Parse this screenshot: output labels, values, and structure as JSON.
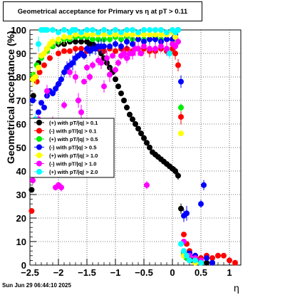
{
  "title": "Geometrical acceptance for Primary vs    η  at pT > 0.11",
  "footer": "Sun Jun 29 06:44:10 2025",
  "chart_data": {
    "type": "scatter",
    "xlabel": "η",
    "ylabel": "Geometrical acceptance (%)",
    "xlim": [
      -2.5,
      1.2
    ],
    "ylim": [
      0,
      100
    ],
    "x_ticks": [
      "−2.5",
      "−2",
      "−1.5",
      "−1",
      "−0.5",
      "0",
      "0.5",
      "1"
    ],
    "y_ticks": [
      "0",
      "10",
      "20",
      "30",
      "40",
      "50",
      "60",
      "70",
      "80",
      "90",
      "100"
    ],
    "grid": true,
    "legend_position": "left-middle",
    "series": [
      {
        "name": "(+) with pT/|q| > 0.1",
        "color": "#000000",
        "points": [
          [
            -2.47,
            32
          ],
          [
            -2.44,
            72
          ],
          [
            -2.4,
            80
          ],
          [
            -2.35,
            86
          ],
          [
            -2.3,
            89
          ],
          [
            -2.2,
            92
          ],
          [
            -2.1,
            93
          ],
          [
            -2.0,
            94
          ],
          [
            -1.9,
            94
          ],
          [
            -1.8,
            95
          ],
          [
            -1.7,
            95
          ],
          [
            -1.6,
            95
          ],
          [
            -1.5,
            95
          ],
          [
            -1.45,
            94
          ],
          [
            -1.4,
            94
          ],
          [
            -1.35,
            93
          ],
          [
            -1.3,
            92
          ],
          [
            -1.25,
            90
          ],
          [
            -1.2,
            88
          ],
          [
            -1.15,
            86
          ],
          [
            -1.1,
            84
          ],
          [
            -1.05,
            82
          ],
          [
            -1.0,
            79
          ],
          [
            -0.95,
            76
          ],
          [
            -0.9,
            73
          ],
          [
            -0.85,
            70
          ],
          [
            -0.8,
            67
          ],
          [
            -0.75,
            64
          ],
          [
            -0.7,
            62
          ],
          [
            -0.65,
            60
          ],
          [
            -0.6,
            58
          ],
          [
            -0.55,
            56
          ],
          [
            -0.5,
            54
          ],
          [
            -0.45,
            52
          ],
          [
            -0.4,
            50
          ],
          [
            -0.35,
            48
          ],
          [
            -0.3,
            47
          ],
          [
            -0.25,
            46
          ],
          [
            -0.2,
            45
          ],
          [
            -0.15,
            44
          ],
          [
            -0.1,
            43
          ],
          [
            -0.05,
            42
          ],
          [
            0.0,
            41
          ],
          [
            0.05,
            40
          ],
          [
            0.1,
            38
          ],
          [
            0.15,
            24
          ],
          [
            0.2,
            5
          ],
          [
            0.25,
            3
          ],
          [
            0.3,
            2
          ],
          [
            0.35,
            2
          ],
          [
            0.4,
            2
          ],
          [
            0.45,
            2
          ],
          [
            0.5,
            1
          ],
          [
            0.6,
            1
          ],
          [
            0.7,
            1
          ]
        ]
      },
      {
        "name": "(-) with pT/|q| > 0.1",
        "color": "#ff0000",
        "points": [
          [
            -2.47,
            23
          ],
          [
            -2.42,
            80
          ],
          [
            -2.38,
            78
          ],
          [
            -2.33,
            82
          ],
          [
            -2.25,
            85
          ],
          [
            -2.15,
            88
          ],
          [
            -2.0,
            90
          ],
          [
            -1.9,
            91
          ],
          [
            -1.8,
            91
          ],
          [
            -1.7,
            92
          ],
          [
            -1.6,
            92
          ],
          [
            -1.5,
            91
          ],
          [
            -1.4,
            92
          ],
          [
            -1.3,
            92
          ],
          [
            -1.2,
            91
          ],
          [
            -1.1,
            92
          ],
          [
            -1.0,
            91
          ],
          [
            -0.9,
            92
          ],
          [
            -0.8,
            92
          ],
          [
            -0.7,
            91
          ],
          [
            -0.6,
            92
          ],
          [
            -0.5,
            92
          ],
          [
            -0.4,
            91
          ],
          [
            -0.3,
            91
          ],
          [
            -0.2,
            92
          ],
          [
            -0.1,
            91
          ],
          [
            0.0,
            92
          ],
          [
            0.05,
            90
          ],
          [
            0.1,
            85
          ],
          [
            0.15,
            63
          ],
          [
            0.2,
            13
          ],
          [
            0.25,
            9
          ],
          [
            0.3,
            6
          ],
          [
            0.4,
            4
          ],
          [
            0.5,
            3
          ],
          [
            0.6,
            4
          ],
          [
            0.7,
            3
          ],
          [
            0.8,
            4
          ],
          [
            0.9,
            4
          ],
          [
            1.0,
            2
          ],
          [
            1.1,
            1
          ]
        ]
      },
      {
        "name": "(+) with pT/|q| > 0.5",
        "color": "#00ee00",
        "points": [
          [
            -2.44,
            81
          ],
          [
            -2.38,
            85
          ],
          [
            -2.3,
            88
          ],
          [
            -2.2,
            91
          ],
          [
            -2.1,
            93
          ],
          [
            -2.0,
            95
          ],
          [
            -1.9,
            96
          ],
          [
            -1.8,
            96
          ],
          [
            -1.7,
            97
          ],
          [
            -1.6,
            97
          ],
          [
            -1.5,
            97
          ],
          [
            -1.4,
            96
          ],
          [
            -1.3,
            96
          ],
          [
            -1.2,
            96
          ],
          [
            -1.1,
            96
          ],
          [
            -1.0,
            97
          ],
          [
            -0.9,
            96
          ],
          [
            -0.8,
            97
          ],
          [
            -0.7,
            96
          ],
          [
            -0.6,
            96
          ],
          [
            -0.5,
            96
          ],
          [
            -0.4,
            96
          ],
          [
            -0.3,
            97
          ],
          [
            -0.2,
            96
          ],
          [
            -0.1,
            96
          ],
          [
            0.0,
            96
          ],
          [
            0.05,
            95
          ],
          [
            0.15,
            67
          ],
          [
            0.2,
            5
          ],
          [
            0.25,
            3
          ],
          [
            0.3,
            2
          ],
          [
            0.4,
            2
          ],
          [
            0.5,
            1
          ]
        ]
      },
      {
        "name": "(-) with pT/|q| > 0.5",
        "color": "#0000ff",
        "points": [
          [
            -2.45,
            70
          ],
          [
            -2.4,
            62
          ],
          [
            -2.35,
            65
          ],
          [
            -2.3,
            69
          ],
          [
            -2.25,
            67
          ],
          [
            -2.2,
            72
          ],
          [
            -2.15,
            74
          ],
          [
            -2.1,
            73
          ],
          [
            -2.05,
            75
          ],
          [
            -2.0,
            77
          ],
          [
            -1.95,
            79
          ],
          [
            -1.9,
            82
          ],
          [
            -1.85,
            84
          ],
          [
            -1.8,
            85
          ],
          [
            -1.75,
            86
          ],
          [
            -1.7,
            88
          ],
          [
            -1.65,
            89
          ],
          [
            -1.6,
            90
          ],
          [
            -1.55,
            89
          ],
          [
            -1.5,
            92
          ],
          [
            -1.45,
            91
          ],
          [
            -1.4,
            92
          ],
          [
            -1.35,
            92
          ],
          [
            -1.3,
            93
          ],
          [
            -1.25,
            93
          ],
          [
            -1.2,
            93
          ],
          [
            -1.1,
            93
          ],
          [
            -1.0,
            94
          ],
          [
            -0.9,
            93
          ],
          [
            -0.8,
            95
          ],
          [
            -0.7,
            94
          ],
          [
            -0.6,
            96
          ],
          [
            -0.5,
            95
          ],
          [
            -0.4,
            96
          ],
          [
            -0.3,
            96
          ],
          [
            -0.2,
            95
          ],
          [
            -0.1,
            96
          ],
          [
            0.0,
            96
          ],
          [
            0.05,
            98
          ],
          [
            0.1,
            100
          ],
          [
            0.15,
            78
          ],
          [
            0.2,
            21
          ],
          [
            0.25,
            22
          ],
          [
            0.3,
            5
          ],
          [
            0.4,
            4
          ],
          [
            0.5,
            26
          ],
          [
            0.55,
            34
          ],
          [
            0.6,
            3
          ],
          [
            0.7,
            1
          ]
        ]
      },
      {
        "name": "(+) with pT/|q| > 1.0",
        "color": "#ffff00",
        "points": [
          [
            -2.45,
            79
          ],
          [
            -2.4,
            80
          ],
          [
            -2.35,
            84
          ],
          [
            -2.3,
            89
          ],
          [
            -2.25,
            90
          ],
          [
            -2.2,
            92
          ],
          [
            -2.15,
            94
          ],
          [
            -2.1,
            95
          ],
          [
            -2.0,
            96
          ],
          [
            -1.9,
            97
          ],
          [
            -1.8,
            97
          ],
          [
            -1.7,
            98
          ],
          [
            -1.6,
            98
          ],
          [
            -1.5,
            98
          ],
          [
            -1.4,
            98
          ],
          [
            -1.3,
            98
          ],
          [
            -1.2,
            98
          ],
          [
            -1.1,
            98
          ],
          [
            -1.0,
            98
          ],
          [
            -0.9,
            98
          ],
          [
            -0.8,
            98
          ],
          [
            -0.7,
            98
          ],
          [
            -0.6,
            98
          ],
          [
            -0.5,
            98
          ],
          [
            -0.4,
            98
          ],
          [
            -0.3,
            98
          ],
          [
            -0.2,
            98
          ],
          [
            -0.1,
            98
          ],
          [
            0.0,
            99
          ],
          [
            0.05,
            97
          ],
          [
            0.15,
            56
          ],
          [
            0.2,
            4
          ],
          [
            0.3,
            2
          ],
          [
            0.4,
            1
          ],
          [
            0.5,
            1
          ]
        ]
      },
      {
        "name": "(-) with pT/|q| > 1.0",
        "color": "#ff00ff",
        "points": [
          [
            -2.45,
            36
          ],
          [
            -2.4,
            60
          ],
          [
            -2.35,
            62
          ],
          [
            -2.25,
            56
          ],
          [
            -2.2,
            74
          ],
          [
            -2.1,
            60
          ],
          [
            -2.05,
            33
          ],
          [
            -2.0,
            34
          ],
          [
            -1.95,
            33
          ],
          [
            -1.9,
            68
          ],
          [
            -1.85,
            60
          ],
          [
            -1.8,
            82
          ],
          [
            -1.7,
            80
          ],
          [
            -1.65,
            70
          ],
          [
            -1.6,
            65
          ],
          [
            -1.55,
            78
          ],
          [
            -1.5,
            84
          ],
          [
            -1.45,
            80
          ],
          [
            -1.4,
            85
          ],
          [
            -1.3,
            87
          ],
          [
            -1.25,
            86
          ],
          [
            -1.2,
            76
          ],
          [
            -1.15,
            88
          ],
          [
            -1.1,
            81
          ],
          [
            -1.05,
            89
          ],
          [
            -1.0,
            83
          ],
          [
            -0.95,
            86
          ],
          [
            -0.9,
            89
          ],
          [
            -0.85,
            90
          ],
          [
            -0.8,
            88
          ],
          [
            -0.75,
            90
          ],
          [
            -0.7,
            90
          ],
          [
            -0.65,
            92
          ],
          [
            -0.6,
            92
          ],
          [
            -0.55,
            90
          ],
          [
            -0.5,
            93
          ],
          [
            -0.45,
            34
          ],
          [
            -0.4,
            92
          ],
          [
            -0.3,
            92
          ],
          [
            -0.2,
            93
          ],
          [
            -0.1,
            92
          ],
          [
            0.0,
            94
          ],
          [
            0.05,
            93
          ],
          [
            0.1,
            95
          ],
          [
            0.2,
            10
          ],
          [
            0.3,
            4
          ],
          [
            0.4,
            3
          ],
          [
            0.5,
            2
          ]
        ]
      },
      {
        "name": "(+) with pT/|q| > 2.0",
        "color": "#00ffff",
        "points": [
          [
            -2.45,
            55
          ],
          [
            -2.4,
            62
          ],
          [
            -2.35,
            94
          ],
          [
            -2.3,
            100
          ],
          [
            -2.25,
            100
          ],
          [
            -2.2,
            100
          ],
          [
            -2.1,
            100
          ],
          [
            -2.0,
            99
          ],
          [
            -1.9,
            100
          ],
          [
            -1.8,
            99
          ],
          [
            -1.75,
            100
          ],
          [
            -1.7,
            100
          ],
          [
            -1.6,
            99
          ],
          [
            -1.5,
            100
          ],
          [
            -1.4,
            100
          ],
          [
            -1.3,
            99
          ],
          [
            -1.2,
            100
          ],
          [
            -1.1,
            99
          ],
          [
            -1.0,
            100
          ],
          [
            -0.9,
            99
          ],
          [
            -0.8,
            100
          ],
          [
            -0.7,
            100
          ],
          [
            -0.6,
            99
          ],
          [
            -0.5,
            100
          ],
          [
            -0.4,
            100
          ],
          [
            -0.3,
            100
          ],
          [
            -0.2,
            100
          ],
          [
            -0.1,
            99
          ],
          [
            -0.05,
            90
          ],
          [
            0.0,
            100
          ],
          [
            0.05,
            99
          ],
          [
            0.1,
            100
          ],
          [
            0.15,
            9
          ],
          [
            0.2,
            6
          ],
          [
            0.25,
            4
          ],
          [
            0.3,
            2
          ],
          [
            0.4,
            2
          ],
          [
            0.5,
            1
          ]
        ]
      }
    ]
  }
}
